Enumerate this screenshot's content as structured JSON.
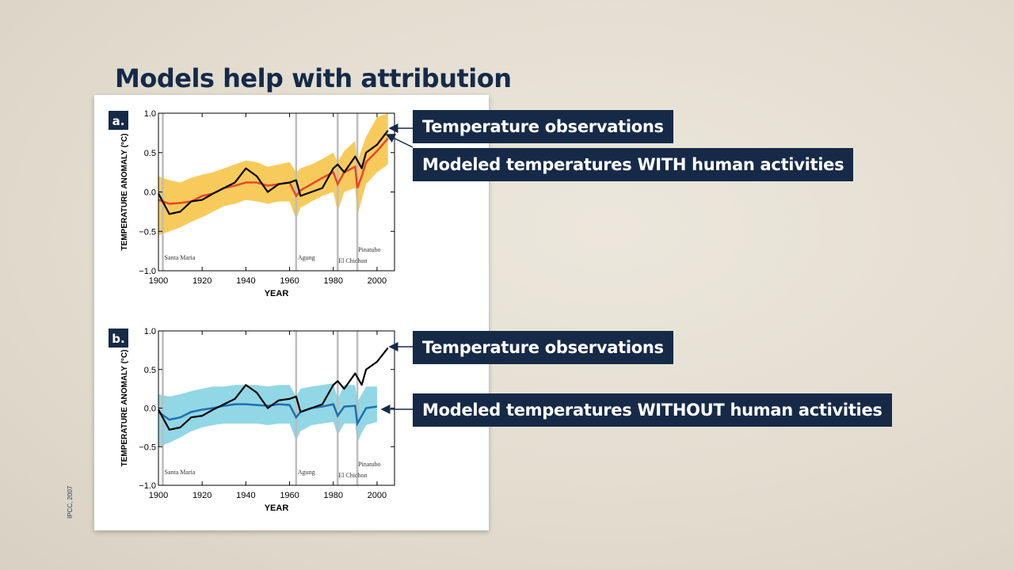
{
  "title": "Models help with attribution",
  "credit": "IPCC, 2007",
  "callouts": {
    "a_obs": "Temperature observations",
    "a_model": "Modeled temperatures WITH human activities",
    "b_obs": "Temperature observations",
    "b_model": "Modeled temperatures WITHOUT human activities"
  },
  "colors": {
    "observations": "#000000",
    "with_mean": "#e8452a",
    "with_band": "#f6c23e",
    "without_mean": "#1f6fb0",
    "without_band": "#7fd0e0",
    "volcano_lines": "#bdbdbd",
    "callout_bg": "#162a48"
  },
  "chart_data": [
    {
      "type": "line",
      "panel_label": "a.",
      "xlabel": "YEAR",
      "ylabel": "TEMPERATURE ANOMALY (°C)",
      "xlim": [
        1900,
        2008
      ],
      "ylim": [
        -1.0,
        1.0
      ],
      "xticks": [
        1900,
        1920,
        1940,
        1960,
        1980,
        2000
      ],
      "yticks": [
        -1.0,
        -0.5,
        0.0,
        0.5,
        1.0
      ],
      "ytick_labels": [
        "−1.0",
        "−0.5",
        "0.0",
        "0.5",
        "1.0"
      ],
      "volcanoes": [
        {
          "name": "Santa Maria",
          "year": 1902
        },
        {
          "name": "Agung",
          "year": 1963
        },
        {
          "name": "El Chichon",
          "year": 1982
        },
        {
          "name": "Pinatubo",
          "year": 1991
        }
      ],
      "x": [
        1900,
        1905,
        1910,
        1915,
        1920,
        1925,
        1930,
        1935,
        1940,
        1945,
        1950,
        1955,
        1960,
        1963,
        1965,
        1970,
        1975,
        1980,
        1982,
        1985,
        1990,
        1991,
        1993,
        1995,
        2000,
        2005
      ],
      "series": [
        {
          "name": "Temperature observations",
          "values": [
            -0.02,
            -0.28,
            -0.25,
            -0.12,
            -0.1,
            -0.02,
            0.05,
            0.12,
            0.3,
            0.2,
            0.0,
            0.1,
            0.12,
            0.15,
            -0.05,
            0.0,
            0.05,
            0.3,
            0.35,
            0.25,
            0.45,
            0.4,
            0.3,
            0.5,
            0.6,
            0.78
          ]
        },
        {
          "name": "Modeled temperatures WITH human activities",
          "values": [
            -0.1,
            -0.15,
            -0.14,
            -0.12,
            -0.05,
            -0.02,
            0.05,
            0.08,
            0.12,
            0.12,
            0.08,
            0.1,
            0.12,
            -0.05,
            0.02,
            0.1,
            0.18,
            0.25,
            0.1,
            0.25,
            0.32,
            0.05,
            0.2,
            0.38,
            0.52,
            0.68
          ]
        }
      ],
      "band": {
        "lower": [
          -0.55,
          -0.5,
          -0.45,
          -0.38,
          -0.32,
          -0.25,
          -0.18,
          -0.15,
          -0.1,
          -0.12,
          -0.15,
          -0.12,
          -0.12,
          -0.35,
          -0.2,
          -0.12,
          -0.05,
          0.0,
          -0.25,
          0.0,
          0.05,
          -0.3,
          -0.1,
          0.1,
          0.25,
          0.35
        ],
        "upper": [
          0.2,
          0.15,
          0.12,
          0.18,
          0.22,
          0.25,
          0.3,
          0.35,
          0.4,
          0.38,
          0.32,
          0.35,
          0.38,
          0.25,
          0.3,
          0.35,
          0.42,
          0.5,
          0.38,
          0.52,
          0.65,
          0.38,
          0.55,
          0.7,
          0.95,
          1.0
        ]
      }
    },
    {
      "type": "line",
      "panel_label": "b.",
      "xlabel": "YEAR",
      "ylabel": "TEMPERATURE ANOMALY (°C)",
      "xlim": [
        1900,
        2008
      ],
      "ylim": [
        -1.0,
        1.0
      ],
      "xticks": [
        1900,
        1920,
        1940,
        1960,
        1980,
        2000
      ],
      "yticks": [
        -1.0,
        -0.5,
        0.0,
        0.5,
        1.0
      ],
      "ytick_labels": [
        "−1.0",
        "−0.5",
        "0.0",
        "0.5",
        "1.0"
      ],
      "volcanoes": [
        {
          "name": "Santa Maria",
          "year": 1902
        },
        {
          "name": "Agung",
          "year": 1963
        },
        {
          "name": "El Chichon",
          "year": 1982
        },
        {
          "name": "Pinatubo",
          "year": 1991
        }
      ],
      "x": [
        1900,
        1905,
        1910,
        1915,
        1920,
        1925,
        1930,
        1935,
        1940,
        1945,
        1950,
        1955,
        1960,
        1963,
        1965,
        1970,
        1975,
        1980,
        1982,
        1985,
        1990,
        1991,
        1993,
        1995,
        2000,
        2005
      ],
      "series": [
        {
          "name": "Temperature observations",
          "values": [
            -0.02,
            -0.28,
            -0.25,
            -0.12,
            -0.1,
            -0.02,
            0.05,
            0.12,
            0.3,
            0.2,
            0.0,
            0.1,
            0.12,
            0.15,
            -0.05,
            0.0,
            0.05,
            0.3,
            0.35,
            0.25,
            0.45,
            0.4,
            0.3,
            0.5,
            0.6,
            0.78
          ]
        },
        {
          "name": "Modeled temperatures WITHOUT human activities",
          "values": [
            -0.05,
            -0.15,
            -0.12,
            -0.05,
            -0.02,
            0.0,
            0.03,
            0.05,
            0.05,
            0.04,
            0.03,
            0.05,
            0.04,
            -0.12,
            -0.05,
            0.0,
            0.02,
            0.05,
            -0.1,
            0.02,
            0.03,
            -0.2,
            -0.1,
            0.0,
            0.02,
            null
          ]
        }
      ],
      "band": {
        "lower": [
          -0.5,
          -0.45,
          -0.38,
          -0.3,
          -0.25,
          -0.22,
          -0.2,
          -0.2,
          -0.2,
          -0.2,
          -0.22,
          -0.2,
          -0.2,
          -0.42,
          -0.3,
          -0.22,
          -0.2,
          -0.18,
          -0.35,
          -0.2,
          -0.2,
          -0.45,
          -0.32,
          -0.22,
          -0.18,
          null
        ],
        "upper": [
          0.18,
          0.15,
          0.18,
          0.22,
          0.25,
          0.28,
          0.28,
          0.3,
          0.3,
          0.3,
          0.28,
          0.3,
          0.3,
          0.15,
          0.25,
          0.28,
          0.3,
          0.32,
          0.12,
          0.3,
          0.3,
          0.08,
          0.18,
          0.28,
          0.28,
          null
        ]
      }
    }
  ]
}
